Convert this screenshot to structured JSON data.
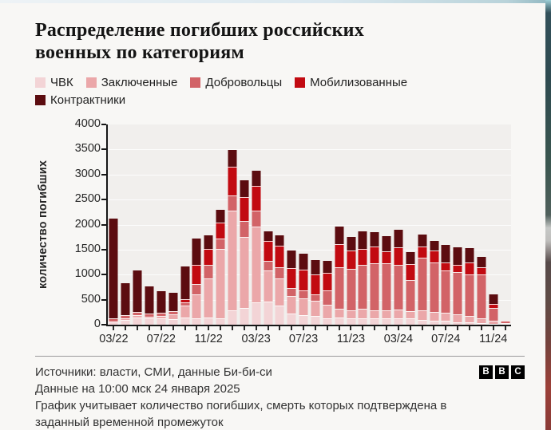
{
  "page": {
    "background": "#f8f7f5",
    "accent_dark": "#5c0c10"
  },
  "title": "Распределение погибших российских военных по категориям",
  "legend": [
    {
      "label": "ЧВК",
      "color": "#f3d4d6"
    },
    {
      "label": "Заключенные",
      "color": "#eba7a9"
    },
    {
      "label": "Добровольцы",
      "color": "#d26367"
    },
    {
      "label": "Мобилизованные",
      "color": "#c20a11"
    },
    {
      "label": "Контрактники",
      "color": "#5c0c10"
    }
  ],
  "chart_data": {
    "type": "bar",
    "stacked": true,
    "title": "Распределение погибших российских военных по категориям",
    "xlabel": "",
    "ylabel": "количество погибших",
    "ylim": [
      0,
      4000
    ],
    "ytick_step": 500,
    "yticks": [
      0,
      500,
      1000,
      1500,
      2000,
      2500,
      3000,
      3500,
      4000
    ],
    "grid": true,
    "legend_position": "top",
    "xtick_every": 4,
    "xtick_labels_shown": [
      "03/22",
      "07/22",
      "11/22",
      "03/23",
      "07/23",
      "11/23",
      "03/24",
      "07/24",
      "11/24"
    ],
    "categories": [
      "03/22",
      "04/22",
      "05/22",
      "06/22",
      "07/22",
      "08/22",
      "09/22",
      "10/22",
      "11/22",
      "12/22",
      "01/23",
      "02/23",
      "03/23",
      "04/23",
      "05/23",
      "06/23",
      "07/23",
      "08/23",
      "09/23",
      "10/23",
      "11/23",
      "12/23",
      "01/24",
      "02/24",
      "03/24",
      "04/24",
      "05/24",
      "06/24",
      "07/24",
      "08/24",
      "09/24",
      "10/24",
      "11/24",
      "12/24"
    ],
    "series": [
      {
        "name": "ЧВК",
        "color": "#f3d4d6",
        "values": [
          60,
          100,
          150,
          120,
          120,
          110,
          140,
          130,
          140,
          130,
          290,
          330,
          450,
          470,
          390,
          230,
          190,
          180,
          130,
          150,
          130,
          130,
          130,
          130,
          130,
          120,
          100,
          75,
          75,
          50,
          50,
          30,
          20,
          10
        ]
      },
      {
        "name": "Заключенные",
        "color": "#eba7a9",
        "values": [
          0,
          30,
          40,
          40,
          60,
          100,
          240,
          480,
          790,
          1380,
          1990,
          1420,
          1510,
          620,
          530,
          350,
          340,
          300,
          265,
          170,
          160,
          190,
          160,
          160,
          175,
          150,
          180,
          185,
          160,
          160,
          130,
          95,
          55,
          15
        ]
      },
      {
        "name": "Добровольцы",
        "color": "#d26367",
        "values": [
          70,
          60,
          70,
          60,
          60,
          60,
          70,
          210,
          260,
          210,
          300,
          330,
          320,
          180,
          220,
          160,
          150,
          130,
          290,
          820,
          825,
          870,
          930,
          930,
          885,
          620,
          1060,
          985,
          850,
          850,
          825,
          880,
          265,
          50
        ]
      },
      {
        "name": "Мобилизованные",
        "color": "#c20a11",
        "values": [
          0,
          0,
          0,
          0,
          0,
          0,
          60,
          370,
          330,
          320,
          570,
          470,
          490,
          400,
          440,
          400,
          425,
          395,
          350,
          475,
          370,
          320,
          350,
          240,
          350,
          320,
          230,
          240,
          160,
          135,
          240,
          135,
          80,
          0
        ]
      },
      {
        "name": "Контрактники",
        "color": "#5c0c10",
        "values": [
          1990,
          640,
          820,
          540,
          430,
          370,
          650,
          530,
          270,
          250,
          340,
          330,
          300,
          200,
          200,
          350,
          320,
          290,
          235,
          345,
          275,
          350,
          280,
          305,
          355,
          240,
          230,
          185,
          345,
          345,
          290,
          210,
          185,
          10
        ]
      }
    ]
  },
  "footer": {
    "sources": "Источники: власти, СМИ, данные Би-би-си",
    "as_of": "Данные на 10:00 мск 24 января 2025",
    "note": "График учитывает количество погибших, смерть которых подтверждена в заданный временной промежуток",
    "logo_letters": [
      "B",
      "B",
      "C"
    ]
  }
}
